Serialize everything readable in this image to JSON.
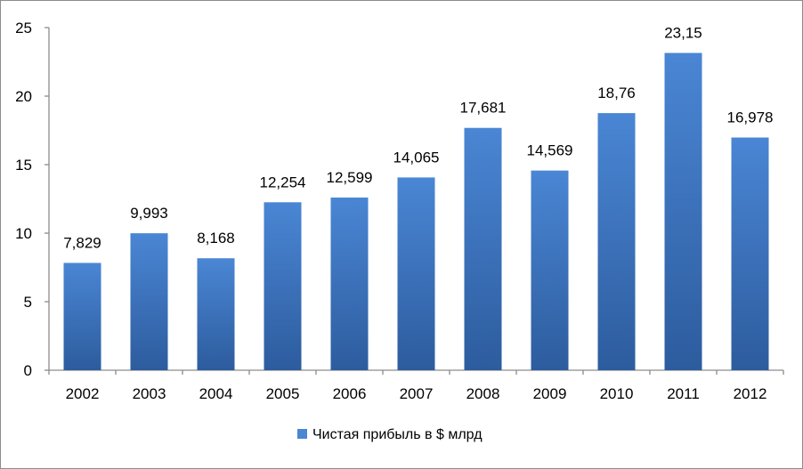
{
  "chart_data": {
    "type": "bar",
    "title": "",
    "xlabel": "",
    "ylabel": "",
    "categories": [
      "2002",
      "2003",
      "2004",
      "2005",
      "2006",
      "2007",
      "2008",
      "2009",
      "2010",
      "2011",
      "2012"
    ],
    "series": [
      {
        "name": "Чистая прибыль в $ млрд",
        "values": [
          7.829,
          9.993,
          8.168,
          12.254,
          12.599,
          14.065,
          17.681,
          14.569,
          18.76,
          23.15,
          16.978
        ],
        "labels": [
          "7,829",
          "9,993",
          "8,168",
          "12,254",
          "12,599",
          "14,065",
          "17,681",
          "14,569",
          "18,76",
          "23,15",
          "16,978"
        ]
      }
    ],
    "ylim": [
      0,
      25
    ],
    "yticks": [
      0,
      5,
      10,
      15,
      20,
      25
    ],
    "grid": false,
    "legend_position": "bottom",
    "colors": {
      "bar_top": "#4a86d4",
      "bar_bottom": "#2d5c9e",
      "axis": "#8c8c8c"
    }
  }
}
